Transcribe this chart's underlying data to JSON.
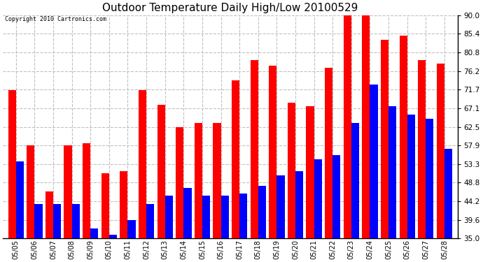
{
  "title": "Outdoor Temperature Daily High/Low 20100529",
  "copyright": "Copyright 2010 Cartronics.com",
  "dates": [
    "05/05",
    "05/06",
    "05/07",
    "05/08",
    "05/09",
    "05/10",
    "05/11",
    "05/12",
    "05/13",
    "05/14",
    "05/15",
    "05/16",
    "05/17",
    "05/18",
    "05/19",
    "05/20",
    "05/21",
    "05/22",
    "05/23",
    "05/24",
    "05/25",
    "05/26",
    "05/27",
    "05/28"
  ],
  "highs": [
    71.5,
    58.0,
    46.5,
    58.0,
    58.5,
    51.0,
    51.5,
    71.5,
    68.0,
    62.5,
    63.5,
    63.5,
    74.0,
    79.0,
    77.5,
    68.5,
    67.5,
    77.0,
    90.0,
    90.0,
    84.0,
    85.0,
    79.0,
    78.0
  ],
  "lows": [
    54.0,
    43.5,
    43.5,
    43.5,
    37.5,
    36.0,
    39.5,
    43.5,
    45.5,
    47.5,
    45.5,
    45.5,
    46.0,
    48.0,
    50.5,
    51.5,
    54.5,
    55.5,
    63.5,
    73.0,
    67.5,
    65.5,
    64.5,
    57.0
  ],
  "high_color": "#ff0000",
  "low_color": "#0000ff",
  "background_color": "#ffffff",
  "grid_color": "#c0c0c0",
  "ylim": [
    35.0,
    90.0
  ],
  "yticks": [
    35.0,
    39.6,
    44.2,
    48.8,
    53.3,
    57.9,
    62.5,
    67.1,
    71.7,
    76.2,
    80.8,
    85.4,
    90.0
  ],
  "title_fontsize": 11,
  "bar_width": 0.42,
  "figure_width": 6.9,
  "figure_height": 3.75,
  "dpi": 100
}
